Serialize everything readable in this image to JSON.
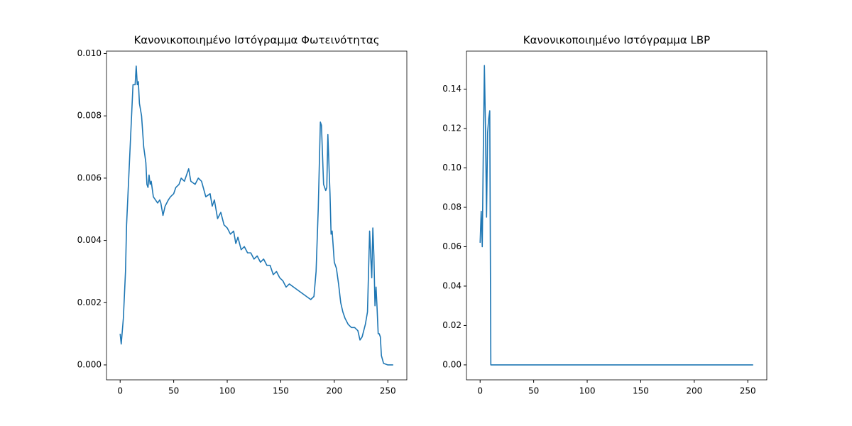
{
  "chart_data": [
    {
      "type": "line",
      "title": "Κανονικοποιημένο Ιστόγραμμα Φωτεινότητας",
      "series": [
        {
          "color": "#1f77b4",
          "x": [
            0,
            1,
            3,
            5,
            6,
            8,
            10,
            12,
            13,
            14,
            15,
            16,
            17,
            18,
            20,
            22,
            24,
            25,
            26,
            27,
            28,
            29,
            31,
            33,
            35,
            37,
            38,
            40,
            42,
            45,
            47,
            50,
            52,
            55,
            57,
            60,
            62,
            64,
            66,
            70,
            73,
            76,
            80,
            84,
            86,
            88,
            91,
            94,
            97,
            100,
            103,
            106,
            108,
            110,
            113,
            116,
            119,
            122,
            125,
            128,
            131,
            134,
            137,
            140,
            143,
            146,
            149,
            152,
            155,
            158,
            162,
            166,
            170,
            174,
            178,
            181,
            183,
            185,
            187,
            188,
            190,
            192,
            193,
            194,
            196,
            197,
            198,
            200,
            202,
            204,
            206,
            208,
            210,
            213,
            216,
            219,
            222,
            224,
            226,
            229,
            231,
            233,
            234,
            235,
            236,
            237,
            238,
            239,
            240,
            241,
            242,
            243,
            244,
            246,
            250,
            255
          ],
          "values": [
            0.001,
            0.00067,
            0.0015,
            0.003,
            0.0045,
            0.006,
            0.0075,
            0.009,
            0.009,
            0.009,
            0.0096,
            0.009,
            0.0091,
            0.0084,
            0.008,
            0.007,
            0.0065,
            0.0058,
            0.0057,
            0.0061,
            0.0058,
            0.0059,
            0.0054,
            0.0053,
            0.0052,
            0.0053,
            0.0052,
            0.0048,
            0.0051,
            0.0053,
            0.0054,
            0.0055,
            0.0057,
            0.0058,
            0.006,
            0.0059,
            0.0061,
            0.0063,
            0.0059,
            0.0058,
            0.006,
            0.0059,
            0.0054,
            0.0055,
            0.0051,
            0.0053,
            0.0047,
            0.0049,
            0.0045,
            0.0044,
            0.0042,
            0.0043,
            0.0039,
            0.0041,
            0.0037,
            0.0038,
            0.0036,
            0.0036,
            0.0034,
            0.0035,
            0.0033,
            0.0034,
            0.0032,
            0.0032,
            0.0029,
            0.003,
            0.0028,
            0.0027,
            0.0025,
            0.0026,
            0.0025,
            0.0024,
            0.0023,
            0.0022,
            0.0021,
            0.0022,
            0.003,
            0.005,
            0.0078,
            0.0077,
            0.0058,
            0.0056,
            0.0057,
            0.0074,
            0.0055,
            0.0042,
            0.0043,
            0.0033,
            0.0031,
            0.0026,
            0.002,
            0.0017,
            0.0015,
            0.0013,
            0.0012,
            0.0012,
            0.0011,
            0.0008,
            0.0009,
            0.0013,
            0.0017,
            0.0043,
            0.0035,
            0.0028,
            0.0044,
            0.0035,
            0.0019,
            0.0025,
            0.0018,
            0.001,
            0.001,
            0.0009,
            0.0003,
            5e-05,
            0,
            0
          ]
        }
      ],
      "xlim": [
        -12.75,
        267.75
      ],
      "ylim": [
        -0.00048,
        0.01008
      ],
      "xticks": [
        0,
        50,
        100,
        150,
        200,
        250
      ],
      "yticks": [
        {
          "value": 0,
          "label": "0.000"
        },
        {
          "value": 0.002,
          "label": "0.002"
        },
        {
          "value": 0.004,
          "label": "0.004"
        },
        {
          "value": 0.006,
          "label": "0.006"
        },
        {
          "value": 0.008,
          "label": "0.008"
        },
        {
          "value": 0.01,
          "label": "0.010"
        }
      ]
    },
    {
      "type": "line",
      "title": "Κανονικοποιημένο Ιστόγραμμα LBP",
      "series": [
        {
          "color": "#1f77b4",
          "x": [
            0,
            1,
            2,
            3,
            4,
            5,
            6,
            7,
            8,
            9,
            10,
            255
          ],
          "values": [
            0.062,
            0.078,
            0.06,
            0.11,
            0.152,
            0.12,
            0.075,
            0.118,
            0.125,
            0.129,
            0,
            0
          ]
        }
      ],
      "xlim": [
        -12.75,
        267.75
      ],
      "ylim": [
        -0.0076,
        0.1593
      ],
      "xticks": [
        0,
        50,
        100,
        150,
        200,
        250
      ],
      "yticks": [
        {
          "value": 0,
          "label": "0.00"
        },
        {
          "value": 0.02,
          "label": "0.02"
        },
        {
          "value": 0.04,
          "label": "0.04"
        },
        {
          "value": 0.06,
          "label": "0.06"
        },
        {
          "value": 0.08,
          "label": "0.08"
        },
        {
          "value": 0.1,
          "label": "0.10"
        },
        {
          "value": 0.12,
          "label": "0.12"
        },
        {
          "value": 0.14,
          "label": "0.14"
        }
      ]
    }
  ]
}
